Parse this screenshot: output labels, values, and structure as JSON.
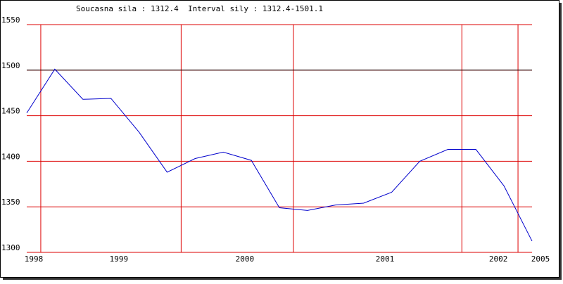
{
  "chart_data": {
    "type": "line",
    "title": "Soucasna sila : 1312.4  Interval sily : 1312.4-1501.1",
    "x": [
      0,
      1,
      2,
      3,
      4,
      5,
      6,
      7,
      8,
      9,
      10,
      11,
      12,
      13,
      14,
      15,
      16,
      17,
      18
    ],
    "series": [
      {
        "color": "#0000cc",
        "values": [
          1453,
          1501.1,
          1468,
          1469,
          1432,
          1388,
          1403,
          1410,
          1401,
          1349,
          1346,
          1352,
          1354,
          1366,
          1400,
          1413,
          1413,
          1373,
          1312.4
        ]
      }
    ],
    "xlim": [
      0,
      18
    ],
    "xticks": [
      {
        "value": 0.25,
        "label": "1998"
      },
      {
        "value": 3.28,
        "label": "1999"
      },
      {
        "value": 7.77,
        "label": "2000"
      },
      {
        "value": 12.76,
        "label": "2001"
      },
      {
        "value": 16.8,
        "label": "2002"
      },
      {
        "value": 18.3,
        "label": "2005"
      }
    ],
    "xgrid": [
      0.5,
      5.5,
      9.5,
      15.5,
      17.5
    ],
    "ylim": [
      1300,
      1550
    ],
    "yticks": [
      1300,
      1350,
      1400,
      1450,
      1500,
      1550
    ],
    "grid": true,
    "grid_color": "#dd0000",
    "reference_line": 1500,
    "reference_color": "#000000"
  }
}
